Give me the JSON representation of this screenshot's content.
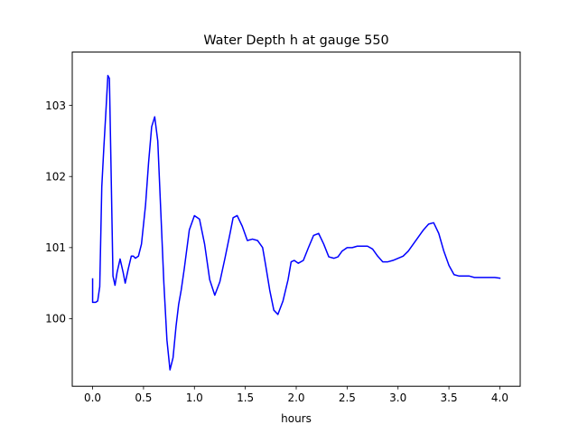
{
  "chart_data": {
    "type": "line",
    "title": "Water Depth h at gauge 550",
    "xlabel": "hours",
    "ylabel": "",
    "xlim": [
      -0.2,
      4.2
    ],
    "ylim": [
      99.05,
      103.75
    ],
    "grid": false,
    "x_ticks": [
      {
        "value": 0.0,
        "label": "0.0"
      },
      {
        "value": 0.5,
        "label": "0.5"
      },
      {
        "value": 1.0,
        "label": "1.0"
      },
      {
        "value": 1.5,
        "label": "1.5"
      },
      {
        "value": 2.0,
        "label": "2.0"
      },
      {
        "value": 2.5,
        "label": "2.5"
      },
      {
        "value": 3.0,
        "label": "3.0"
      },
      {
        "value": 3.5,
        "label": "3.5"
      },
      {
        "value": 4.0,
        "label": "4.0"
      }
    ],
    "y_ticks": [
      {
        "value": 100,
        "label": "100"
      },
      {
        "value": 101,
        "label": "101"
      },
      {
        "value": 102,
        "label": "102"
      },
      {
        "value": 103,
        "label": "103"
      }
    ],
    "series": [
      {
        "color": "#0000ff",
        "x": [
          0.0,
          0.0,
          0.03,
          0.05,
          0.07,
          0.09,
          0.11,
          0.13,
          0.15,
          0.165,
          0.18,
          0.2,
          0.22,
          0.24,
          0.27,
          0.3,
          0.32,
          0.35,
          0.38,
          0.4,
          0.42,
          0.45,
          0.48,
          0.52,
          0.55,
          0.58,
          0.61,
          0.64,
          0.67,
          0.7,
          0.73,
          0.76,
          0.79,
          0.82,
          0.845,
          0.87,
          0.9,
          0.95,
          1.0,
          1.05,
          1.1,
          1.15,
          1.2,
          1.25,
          1.3,
          1.35,
          1.38,
          1.42,
          1.47,
          1.52,
          1.57,
          1.62,
          1.67,
          1.7,
          1.74,
          1.78,
          1.82,
          1.87,
          1.92,
          1.95,
          1.98,
          2.02,
          2.07,
          2.12,
          2.17,
          2.22,
          2.27,
          2.32,
          2.37,
          2.41,
          2.45,
          2.5,
          2.55,
          2.6,
          2.65,
          2.7,
          2.75,
          2.8,
          2.85,
          2.9,
          2.95,
          3.0,
          3.05,
          3.1,
          3.15,
          3.2,
          3.25,
          3.3,
          3.35,
          3.4,
          3.45,
          3.5,
          3.55,
          3.6,
          3.65,
          3.7,
          3.75,
          3.8,
          3.85,
          3.9,
          3.95,
          4.0
        ],
        "y": [
          100.56,
          100.23,
          100.23,
          100.25,
          100.45,
          101.85,
          102.4,
          102.9,
          103.42,
          103.38,
          102.2,
          100.6,
          100.47,
          100.65,
          100.84,
          100.65,
          100.5,
          100.7,
          100.88,
          100.88,
          100.85,
          100.88,
          101.05,
          101.6,
          102.2,
          102.7,
          102.84,
          102.5,
          101.5,
          100.5,
          99.7,
          99.28,
          99.45,
          99.9,
          100.2,
          100.4,
          100.7,
          101.25,
          101.45,
          101.4,
          101.05,
          100.55,
          100.33,
          100.52,
          100.85,
          101.2,
          101.42,
          101.45,
          101.3,
          101.1,
          101.12,
          101.1,
          101.0,
          100.75,
          100.4,
          100.12,
          100.06,
          100.25,
          100.55,
          100.8,
          100.82,
          100.78,
          100.82,
          101.0,
          101.17,
          101.2,
          101.05,
          100.87,
          100.85,
          100.87,
          100.95,
          101.0,
          101.0,
          101.02,
          101.02,
          101.02,
          100.98,
          100.88,
          100.8,
          100.8,
          100.82,
          100.85,
          100.88,
          100.95,
          101.05,
          101.15,
          101.25,
          101.33,
          101.35,
          101.2,
          100.95,
          100.75,
          100.62,
          100.6,
          100.6,
          100.6,
          100.58,
          100.58,
          100.58,
          100.58,
          100.58,
          100.57
        ]
      }
    ]
  }
}
